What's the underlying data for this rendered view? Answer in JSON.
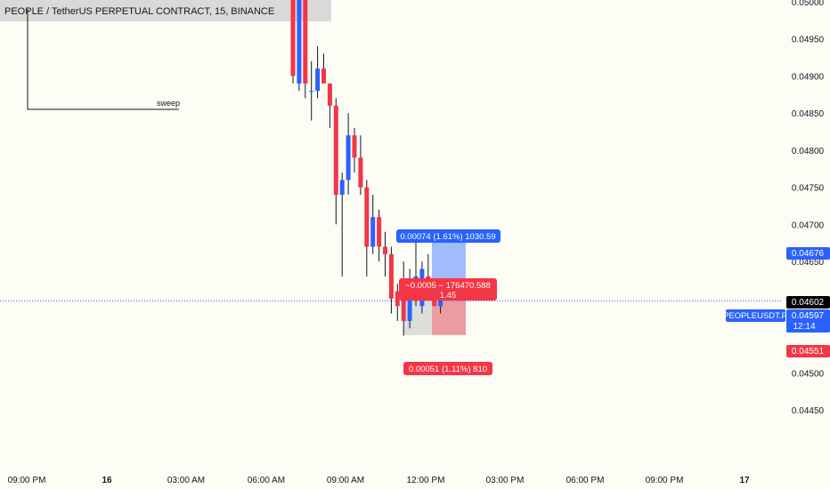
{
  "colors": {
    "background": "#fdfcf5",
    "bull": "#2962ff",
    "bear": "#f23645",
    "axis_text": "#131722",
    "crosshair": "#2962ff",
    "target_zone": "#8fb0fa",
    "stop_zone": "#e88b93",
    "label_bg_black": "#000000"
  },
  "chart_data": {
    "type": "candlestick",
    "title": "PEOPLE / TetherUS PERPETUAL CONTRACT, 15, BINANCE",
    "symbol_tag": "PEOPLEUSDT.P",
    "ylim": [
      0.04425,
      0.05
    ],
    "y_ticks": [
      "0.05000",
      "0.04950",
      "0.04900",
      "0.04850",
      "0.04800",
      "0.04750",
      "0.04700",
      "0.04650",
      "0.04500",
      "0.04450"
    ],
    "x_ticks": [
      "09:00 PM",
      "16",
      "03:00 AM",
      "06:00 AM",
      "09:00 AM",
      "12:00 PM",
      "03:00 PM",
      "06:00 PM",
      "09:00 PM",
      "17"
    ],
    "candles": [
      {
        "o": 0.0506,
        "h": 0.051,
        "l": 0.0489,
        "c": 0.049
      },
      {
        "o": 0.0489,
        "h": 0.0505,
        "l": 0.0488,
        "c": 0.0502
      },
      {
        "o": 0.0502,
        "h": 0.0505,
        "l": 0.0487,
        "c": 0.0489
      },
      {
        "o": 0.0488,
        "h": 0.0492,
        "l": 0.0484,
        "c": 0.0488
      },
      {
        "o": 0.0488,
        "h": 0.0494,
        "l": 0.0487,
        "c": 0.0491
      },
      {
        "o": 0.0491,
        "h": 0.0493,
        "l": 0.0489,
        "c": 0.0489
      },
      {
        "o": 0.0489,
        "h": 0.0489,
        "l": 0.0483,
        "c": 0.0486
      },
      {
        "o": 0.0486,
        "h": 0.0487,
        "l": 0.047,
        "c": 0.0474
      },
      {
        "o": 0.0474,
        "h": 0.0477,
        "l": 0.0463,
        "c": 0.0476
      },
      {
        "o": 0.0476,
        "h": 0.0485,
        "l": 0.0474,
        "c": 0.0482
      },
      {
        "o": 0.0482,
        "h": 0.0483,
        "l": 0.0477,
        "c": 0.0479
      },
      {
        "o": 0.0479,
        "h": 0.0482,
        "l": 0.0474,
        "c": 0.0475
      },
      {
        "o": 0.0475,
        "h": 0.0476,
        "l": 0.0463,
        "c": 0.0467
      },
      {
        "o": 0.0467,
        "h": 0.0474,
        "l": 0.0466,
        "c": 0.0471
      },
      {
        "o": 0.0471,
        "h": 0.0472,
        "l": 0.0465,
        "c": 0.0467
      },
      {
        "o": 0.0467,
        "h": 0.0469,
        "l": 0.0463,
        "c": 0.0466
      },
      {
        "o": 0.0466,
        "h": 0.0467,
        "l": 0.0458,
        "c": 0.046
      },
      {
        "o": 0.0461,
        "h": 0.0462,
        "l": 0.0457,
        "c": 0.0459
      },
      {
        "o": 0.0461,
        "h": 0.0465,
        "l": 0.0455,
        "c": 0.0457
      },
      {
        "o": 0.0457,
        "h": 0.0464,
        "l": 0.0456,
        "c": 0.046
      },
      {
        "o": 0.046,
        "h": 0.0468,
        "l": 0.0459,
        "c": 0.0463
      },
      {
        "o": 0.0459,
        "h": 0.0465,
        "l": 0.0458,
        "c": 0.0464
      },
      {
        "o": 0.0463,
        "h": 0.0466,
        "l": 0.046,
        "c": 0.0461
      },
      {
        "o": 0.0461,
        "h": 0.0462,
        "l": 0.0459,
        "c": 0.0459
      },
      {
        "o": 0.0459,
        "h": 0.0461,
        "l": 0.0458,
        "c": 0.046
      }
    ],
    "annotations": {
      "sweep_label": "sweep",
      "target_label": "0.00074 (1.61%) 1030.59",
      "stop_label": "0.00051 (1.11%) 810",
      "position_label_line1": "~0.0005 ~ 176470.588",
      "position_label_line2": "1.45"
    },
    "price_tags": {
      "target": "0.04676",
      "high": "0.04602",
      "last": "0.04597",
      "countdown": "12:14",
      "stop": "0.04551"
    },
    "levels": {
      "target": 0.04676,
      "entry": 0.04602,
      "last": 0.04597,
      "stop": 0.04551
    }
  }
}
